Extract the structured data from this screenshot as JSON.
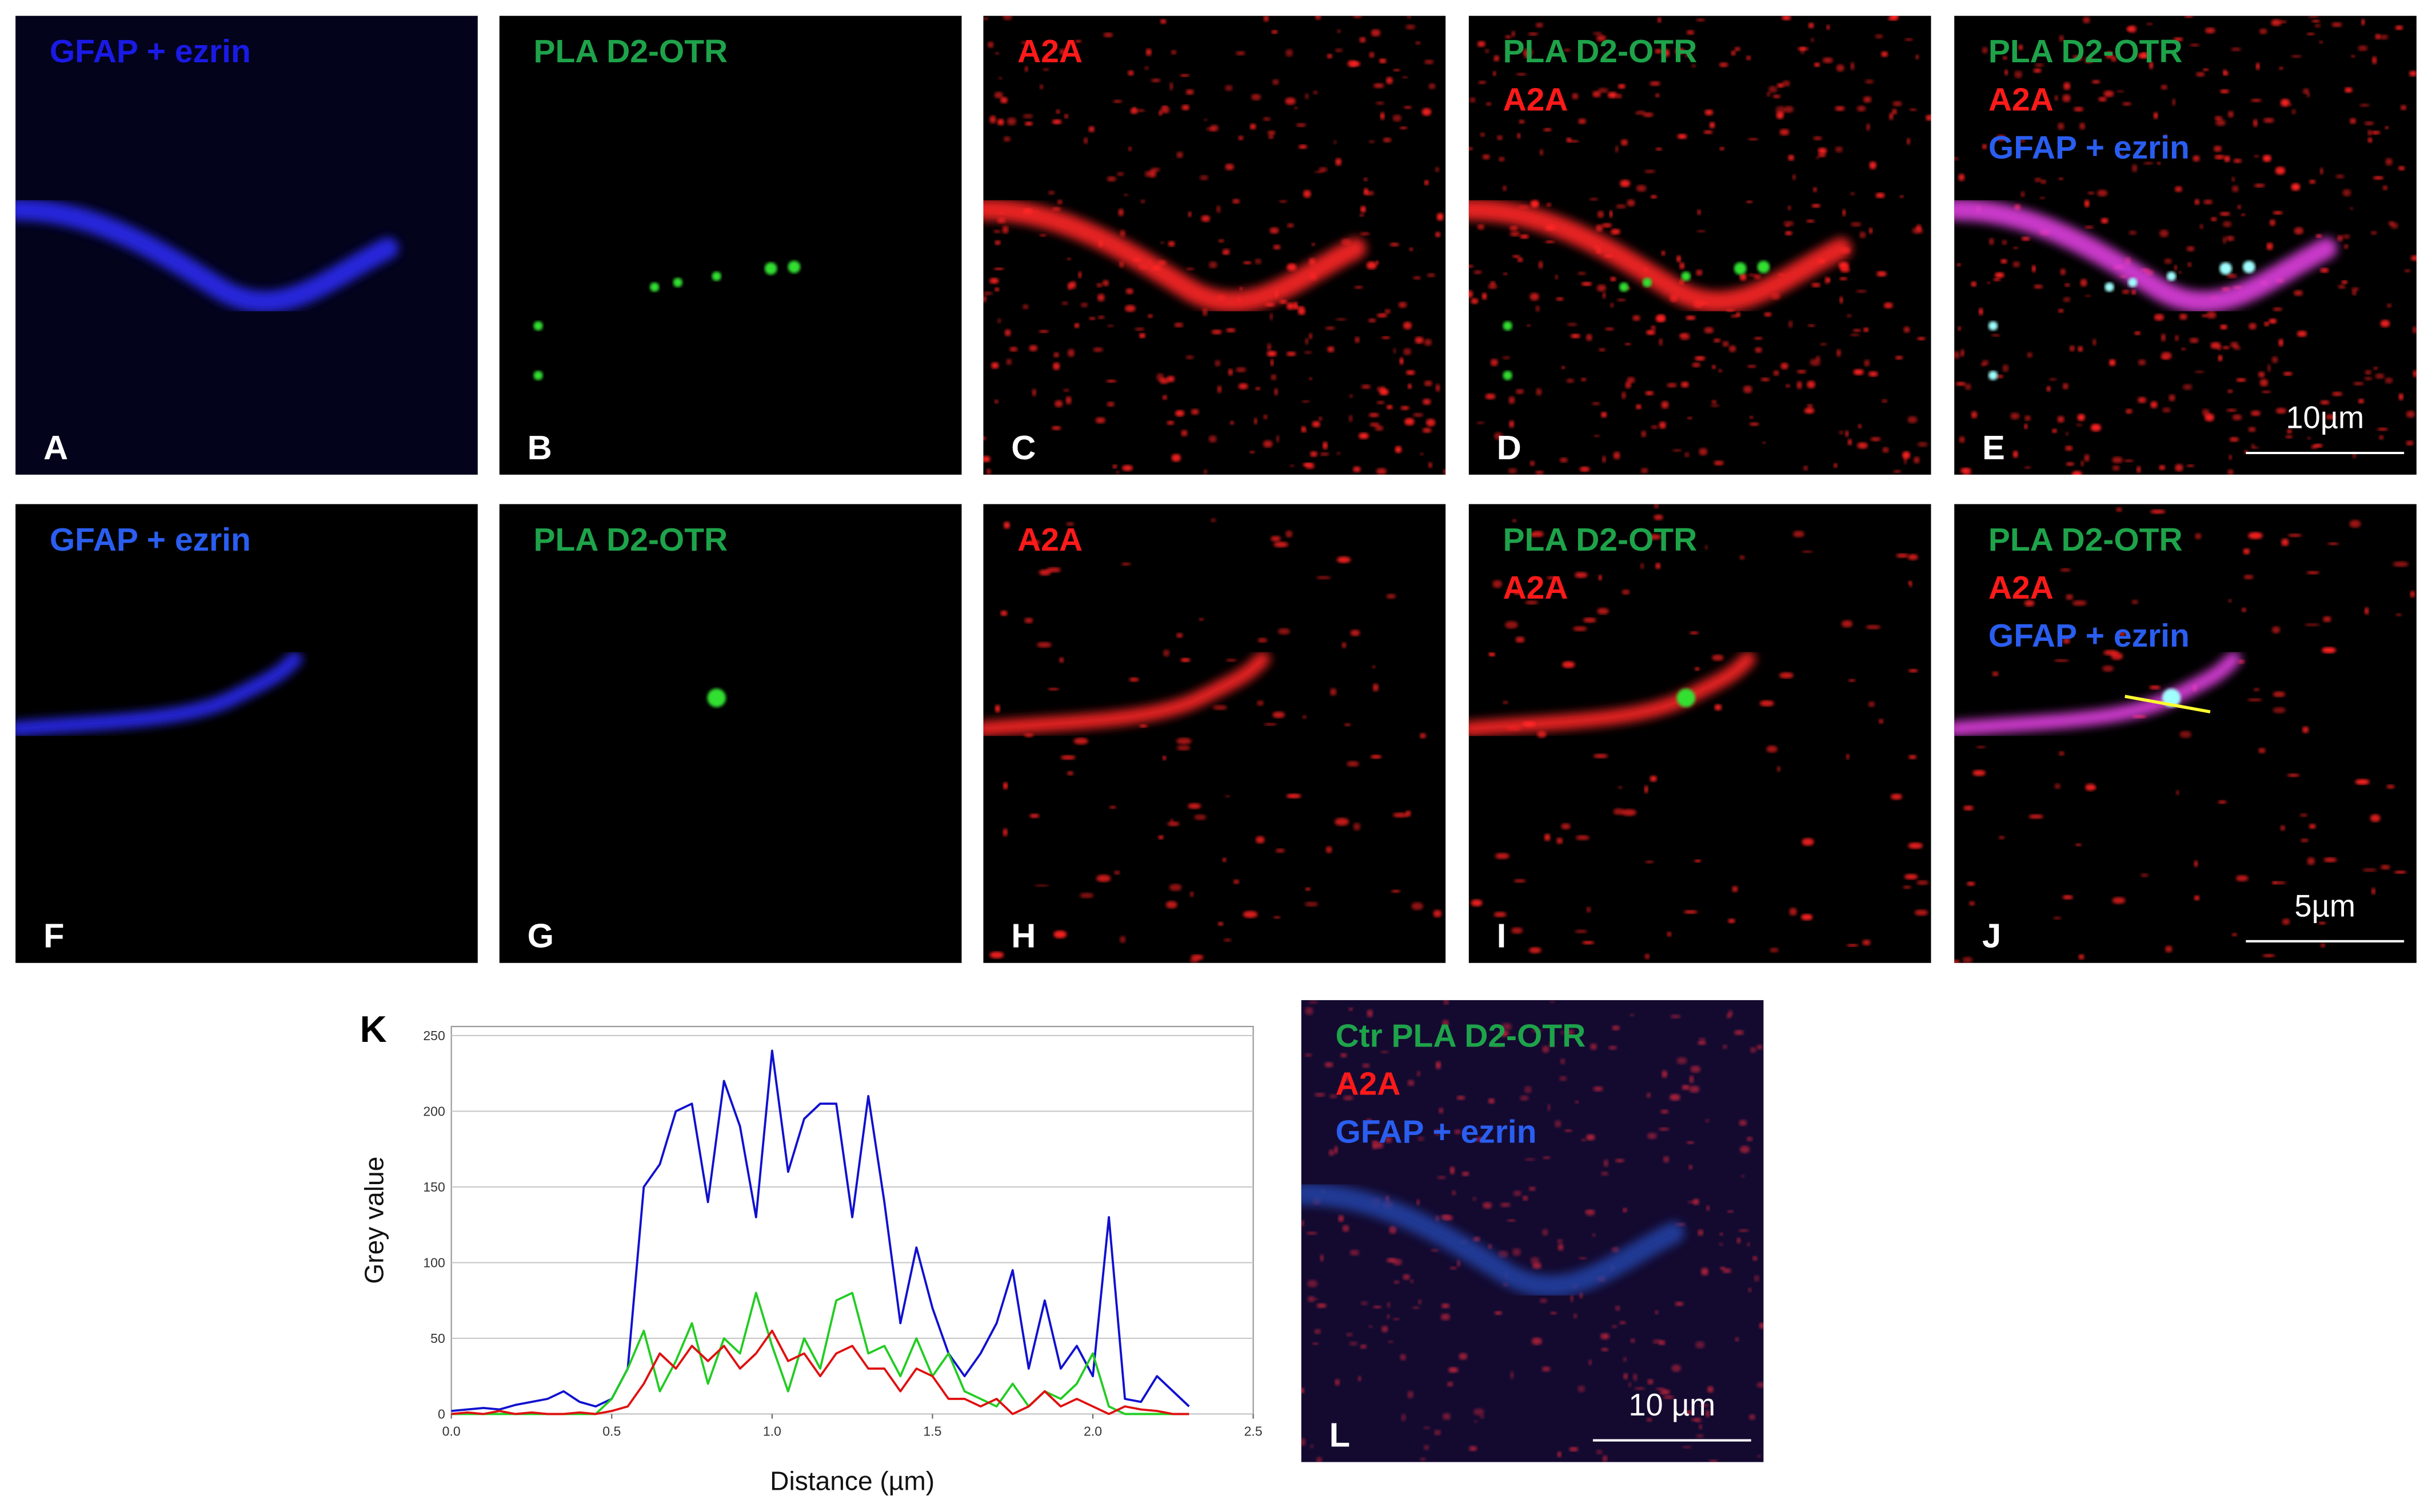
{
  "panels": [
    {
      "letter": "A",
      "labels": [
        {
          "text": "GFAP + ezrin",
          "color": "#1a1ae6"
        }
      ]
    },
    {
      "letter": "B",
      "labels": [
        {
          "text": "PLA D2-OTR",
          "color": "#1ea34a"
        }
      ]
    },
    {
      "letter": "C",
      "labels": [
        {
          "text": "A2A",
          "color": "#ff1a1a"
        }
      ]
    },
    {
      "letter": "D",
      "labels": [
        {
          "text": "PLA D2-OTR",
          "color": "#1ea34a"
        },
        {
          "text": "A2A",
          "color": "#ff1a1a"
        }
      ]
    },
    {
      "letter": "E",
      "labels": [
        {
          "text": "PLA D2-OTR",
          "color": "#1ea34a"
        },
        {
          "text": "A2A",
          "color": "#ff1a1a"
        },
        {
          "text": "GFAP + ezrin",
          "color": "#2a5ef0"
        }
      ],
      "scale_bar": "10µm"
    },
    {
      "letter": "F",
      "labels": [
        {
          "text": "GFAP + ezrin",
          "color": "#2a5ef0"
        }
      ]
    },
    {
      "letter": "G",
      "labels": [
        {
          "text": "PLA D2-OTR",
          "color": "#1ea34a"
        }
      ]
    },
    {
      "letter": "H",
      "labels": [
        {
          "text": "A2A",
          "color": "#ff1a1a"
        }
      ]
    },
    {
      "letter": "I",
      "labels": [
        {
          "text": "PLA D2-OTR",
          "color": "#1ea34a"
        },
        {
          "text": "A2A",
          "color": "#ff1a1a"
        }
      ]
    },
    {
      "letter": "J",
      "labels": [
        {
          "text": "PLA D2-OTR",
          "color": "#1ea34a"
        },
        {
          "text": "A2A",
          "color": "#ff1a1a"
        },
        {
          "text": "GFAP + ezrin",
          "color": "#2a5ef0"
        }
      ],
      "scale_bar": "5µm"
    },
    {
      "letter": "L",
      "labels": [
        {
          "text": "Ctr PLA D2-OTR",
          "color": "#1ea34a"
        },
        {
          "text": "A2A",
          "color": "#ff1a1a"
        },
        {
          "text": "GFAP + ezrin",
          "color": "#2a5ef0"
        }
      ],
      "scale_bar": "10 µm"
    }
  ],
  "chart_data": {
    "type": "line",
    "panel_letter": "K",
    "x_label": "Distance (µm)",
    "y_label": "Grey value",
    "xlim": [
      0,
      2.5
    ],
    "ylim": [
      0,
      256
    ],
    "xticks": [
      {
        "value": 0,
        "label": "0.0"
      },
      0.5,
      {
        "value": 1,
        "label": "1.0"
      },
      1.5,
      {
        "value": 2,
        "label": "2.0"
      },
      2.5
    ],
    "yticks": [
      0,
      50,
      100,
      150,
      200,
      250
    ],
    "grid": true,
    "x": [
      0,
      0.05,
      0.1,
      0.15,
      0.2,
      0.25,
      0.3,
      0.35,
      0.4,
      0.45,
      0.5,
      0.55,
      0.6,
      0.65,
      0.7,
      0.75,
      0.8,
      0.85,
      0.9,
      0.95,
      1.0,
      1.05,
      1.1,
      1.15,
      1.2,
      1.25,
      1.3,
      1.35,
      1.4,
      1.45,
      1.5,
      1.55,
      1.6,
      1.65,
      1.7,
      1.75,
      1.8,
      1.85,
      1.9,
      1.95,
      2.0,
      2.05,
      2.1,
      2.15,
      2.2,
      2.25,
      2.3
    ],
    "series": [
      {
        "color": "#1010d0",
        "values": [
          2,
          3,
          4,
          3,
          6,
          8,
          10,
          15,
          8,
          5,
          10,
          30,
          150,
          165,
          200,
          205,
          140,
          220,
          190,
          130,
          240,
          160,
          195,
          205,
          205,
          130,
          210,
          140,
          60,
          110,
          70,
          40,
          25,
          40,
          60,
          95,
          30,
          75,
          30,
          45,
          25,
          130,
          10,
          8,
          25,
          15,
          5
        ]
      },
      {
        "color": "#22cc22",
        "values": [
          0,
          0,
          0,
          0,
          0,
          0,
          0,
          0,
          0,
          0,
          10,
          30,
          55,
          15,
          35,
          60,
          20,
          50,
          40,
          80,
          45,
          15,
          50,
          30,
          75,
          80,
          40,
          45,
          25,
          50,
          25,
          40,
          15,
          10,
          5,
          20,
          5,
          15,
          10,
          20,
          40,
          5,
          0,
          0,
          0,
          0,
          0
        ]
      },
      {
        "color": "#e01010",
        "values": [
          0,
          1,
          0,
          2,
          0,
          1,
          0,
          0,
          1,
          0,
          2,
          5,
          20,
          40,
          30,
          45,
          35,
          45,
          30,
          40,
          55,
          35,
          40,
          25,
          40,
          45,
          30,
          30,
          15,
          30,
          25,
          10,
          10,
          5,
          10,
          0,
          5,
          15,
          5,
          10,
          5,
          0,
          5,
          3,
          2,
          0,
          0
        ]
      }
    ]
  }
}
